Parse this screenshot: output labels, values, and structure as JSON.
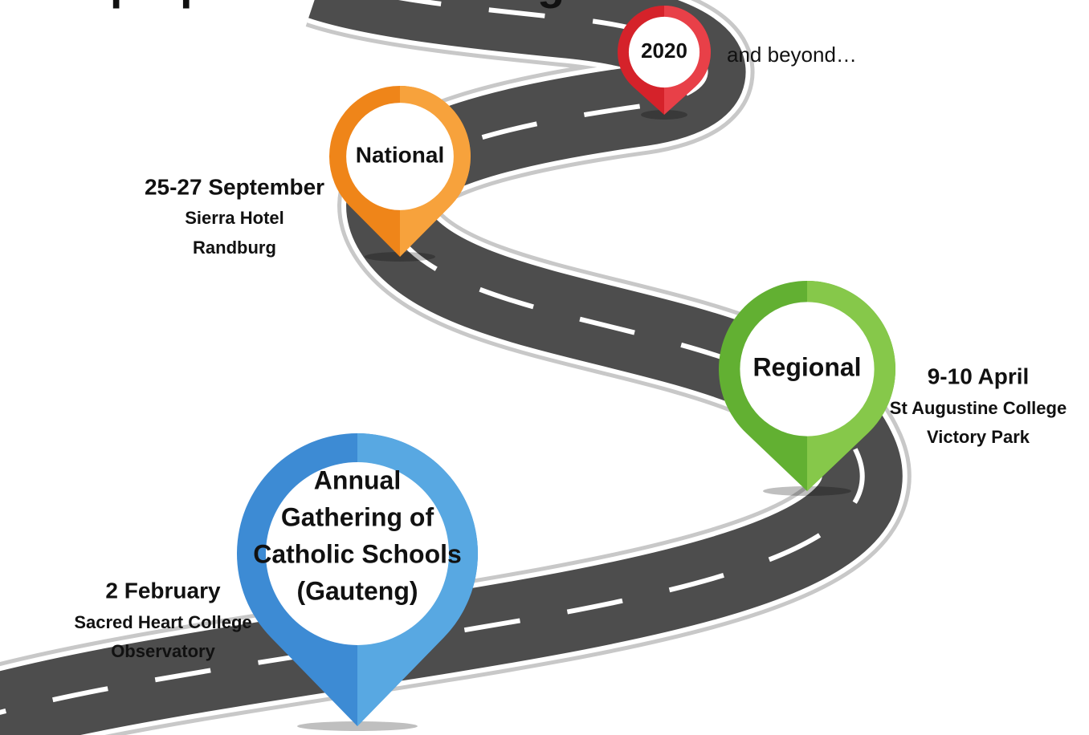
{
  "title": "Our preparations has begun...",
  "milestones": [
    {
      "label": [
        "Annual",
        "Gathering of",
        "Catholic Schools",
        "(Gauteng)"
      ],
      "date": "2 February",
      "venue": [
        "Sacred Heart College",
        "Observatory"
      ]
    },
    {
      "label": [
        "Regional"
      ],
      "date": "9-10 April",
      "venue": [
        "St Augustine College",
        "Victory Park"
      ]
    },
    {
      "label": [
        "National"
      ],
      "date": "25-27 September",
      "venue": [
        "Sierra Hotel",
        "Randburg"
      ]
    },
    {
      "label": [
        "2020"
      ],
      "note": "and beyond…"
    }
  ]
}
